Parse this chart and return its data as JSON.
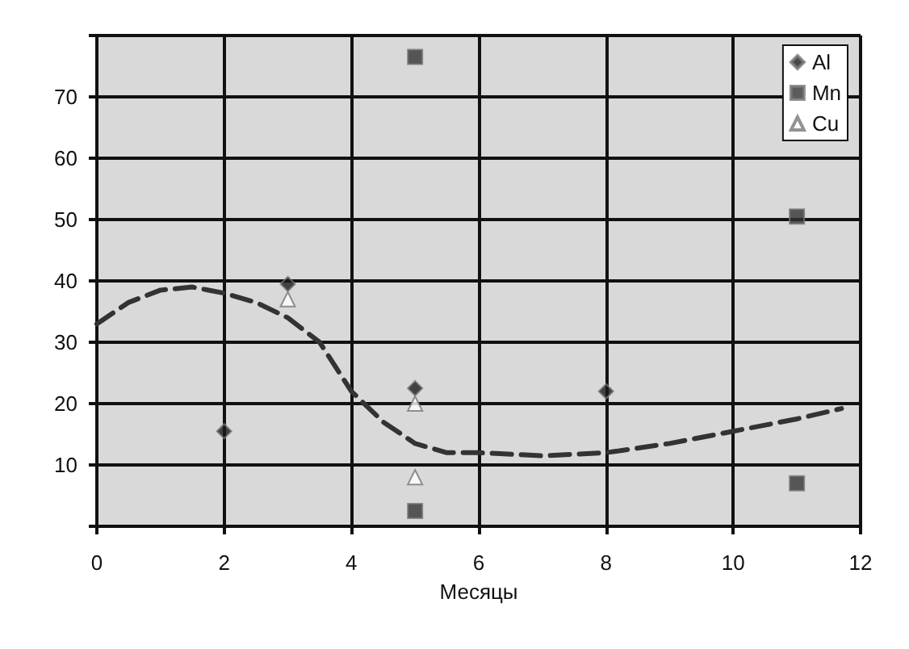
{
  "chart_data": {
    "type": "scatter",
    "xlabel": "Месяцы",
    "xlim": [
      0,
      12
    ],
    "xticks": [
      0,
      2,
      4,
      6,
      8,
      10,
      12
    ],
    "ylim": [
      0,
      80
    ],
    "yticks": [
      {
        "value": 0,
        "label": null
      },
      10,
      20,
      30,
      40,
      50,
      60,
      70,
      {
        "value": 80,
        "label": null
      }
    ],
    "grid": true,
    "legend": "top right",
    "series": [
      {
        "name": "Al",
        "color": "#1a1a1a",
        "marker": "diamond",
        "x": [
          2,
          3,
          5,
          8
        ],
        "values": [
          15.5,
          39.5,
          22.5,
          22
        ]
      },
      {
        "name": "Mn",
        "color": "#333333",
        "marker": "square",
        "x": [
          5,
          5,
          11,
          11
        ],
        "values": [
          76.5,
          2.5,
          7,
          50.5
        ]
      },
      {
        "name": "Cu",
        "color": "#ffffff",
        "marker": "triangle",
        "x": [
          3,
          5,
          5
        ],
        "values": [
          37,
          20,
          8
        ]
      },
      {
        "type": "line",
        "color": "#333333",
        "marker": "none",
        "line_style": "dashed",
        "x": [
          0,
          0.5,
          1,
          1.5,
          2,
          2.5,
          3,
          3.5,
          4,
          4.5,
          5,
          5.5,
          6,
          7,
          8,
          9,
          10,
          11,
          11.7
        ],
        "values": [
          33,
          36.5,
          38.5,
          39,
          38,
          36.5,
          34,
          30,
          22,
          17,
          13.5,
          12,
          12,
          11.5,
          12,
          13.5,
          15.5,
          17.5,
          19.2
        ]
      }
    ]
  }
}
